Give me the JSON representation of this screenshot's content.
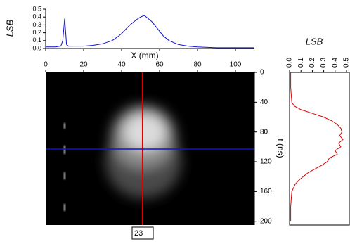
{
  "chart_data": [
    {
      "type": "line",
      "ylabel": "LSB",
      "xlabel": "X (mm)",
      "color": "#1010d0",
      "x": [
        0,
        5,
        8,
        9,
        10,
        11,
        12,
        15,
        20,
        25,
        30,
        35,
        38,
        40,
        42,
        44,
        46,
        48,
        50,
        52,
        54,
        56,
        58,
        60,
        62,
        65,
        70,
        75,
        80,
        90,
        100,
        110
      ],
      "values": [
        0.02,
        0.02,
        0.03,
        0.1,
        0.38,
        0.05,
        0.03,
        0.03,
        0.03,
        0.04,
        0.06,
        0.1,
        0.15,
        0.19,
        0.24,
        0.29,
        0.33,
        0.37,
        0.4,
        0.42,
        0.38,
        0.34,
        0.28,
        0.22,
        0.16,
        0.1,
        0.05,
        0.03,
        0.02,
        0.01,
        0.01,
        0.01
      ],
      "xlim": [
        0,
        110
      ],
      "xticks": [
        0,
        20,
        40,
        60,
        80,
        100
      ],
      "ylim": [
        0,
        0.5
      ],
      "yticks": [
        {
          "value": 0,
          "label": "0,0"
        },
        {
          "value": 0.1,
          "label": "0,1"
        },
        {
          "value": 0.2,
          "label": "0,2"
        },
        {
          "value": 0.3,
          "label": "0,3"
        },
        {
          "value": 0.4,
          "label": "0,4"
        },
        {
          "value": 0.5,
          "label": "0,5"
        }
      ]
    },
    {
      "type": "image",
      "ylabel": "t (ns)",
      "xlim": [
        0,
        110
      ],
      "ylim": [
        0,
        205
      ],
      "yticks": [
        0,
        40,
        80,
        120,
        160,
        200
      ],
      "cursor_x": 51,
      "cursor_y": 103,
      "cursor_x_color": "#e00000",
      "cursor_y_color": "#1010e0",
      "annotation": "23"
    },
    {
      "type": "line",
      "orientation": "vertical",
      "xlabel": "LSB",
      "color": "#e00000",
      "x": [
        0,
        20,
        40,
        45,
        50,
        55,
        60,
        65,
        70,
        75,
        80,
        85,
        90,
        95,
        100,
        105,
        110,
        115,
        120,
        125,
        130,
        135,
        140,
        145,
        150,
        160,
        180,
        200
      ],
      "values": [
        0.01,
        0.01,
        0.02,
        0.04,
        0.1,
        0.2,
        0.3,
        0.37,
        0.42,
        0.45,
        0.46,
        0.44,
        0.47,
        0.43,
        0.45,
        0.4,
        0.42,
        0.35,
        0.33,
        0.28,
        0.22,
        0.16,
        0.12,
        0.08,
        0.05,
        0.02,
        0.01,
        0.01
      ],
      "xlim": [
        0,
        205
      ],
      "ylim": [
        0,
        0.5
      ],
      "yticks": [
        {
          "value": 0,
          "label": "0.0"
        },
        {
          "value": 0.1,
          "label": "0.1"
        },
        {
          "value": 0.2,
          "label": "0.2"
        },
        {
          "value": 0.3,
          "label": "0.3"
        },
        {
          "value": 0.4,
          "label": "0.4"
        },
        {
          "value": 0.5,
          "label": "0.5"
        }
      ]
    }
  ]
}
